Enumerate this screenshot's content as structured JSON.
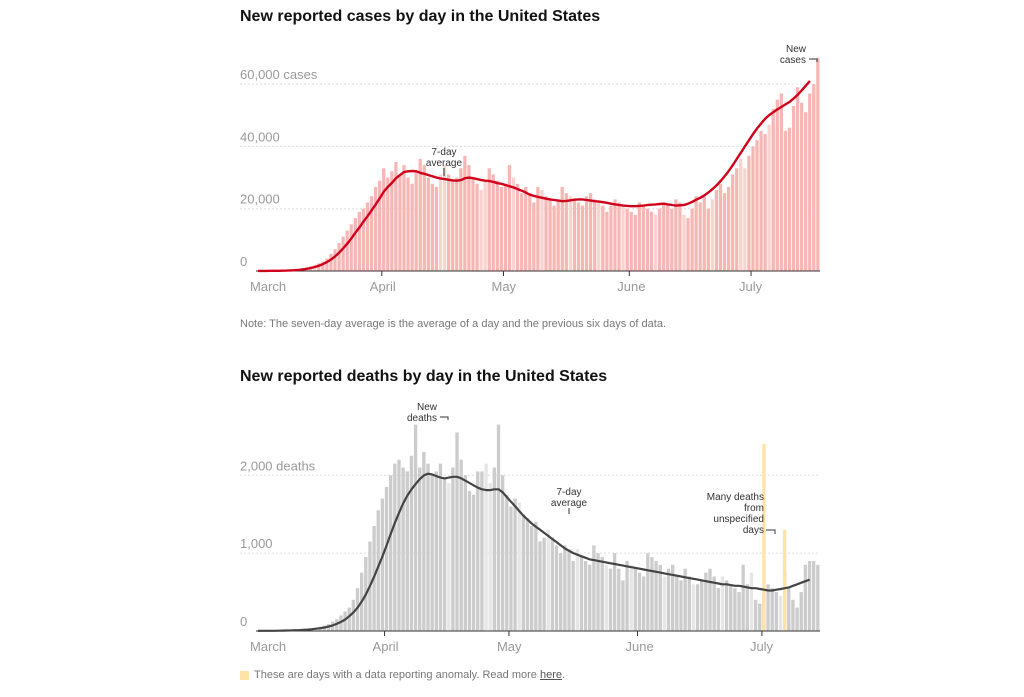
{
  "charts": {
    "cases": {
      "title": "New reported cases by day in the United States",
      "note": "Note: The seven-day average is the average of a day and the previous six days of data.",
      "y_labels": [
        "60,000 cases",
        "40,000",
        "20,000",
        "0"
      ],
      "month_labels": [
        "March",
        "April",
        "May",
        "June",
        "July"
      ],
      "annotation_average": [
        "7-day",
        "average"
      ],
      "annotation_new": [
        "New",
        "cases"
      ]
    },
    "deaths": {
      "title": "New reported deaths by day in the United States",
      "y_labels": [
        "2,000 deaths",
        "1,000",
        "0"
      ],
      "month_labels": [
        "March",
        "April",
        "May",
        "June",
        "July"
      ],
      "annotation_new": [
        "New",
        "deaths"
      ],
      "annotation_average": [
        "7-day",
        "average"
      ],
      "annotation_anomaly": [
        "Many deaths",
        "from",
        "unspecified",
        "days"
      ],
      "legend_text": "These are days with a data reporting anomaly. Read more",
      "legend_link": "here",
      "legend_period": "."
    }
  },
  "colors": {
    "cases_bar": "#f6b7b4",
    "cases_bar_light": "#fad2d0",
    "cases_line": "#d0021b",
    "deaths_bar": "#cccccc",
    "deaths_bar_light": "#e6e6e6",
    "deaths_line": "#444444",
    "anomaly": "#fde3a7"
  },
  "chart_data": [
    {
      "type": "bar",
      "title": "New reported cases by day in the United States",
      "x_range": [
        "2020-03-01",
        "2020-07-12"
      ],
      "ylim": [
        0,
        70000
      ],
      "grid": true,
      "y_ticks": [
        0,
        20000,
        40000,
        60000
      ],
      "series": [
        {
          "name": "New cases",
          "values": [
            30,
            40,
            50,
            60,
            80,
            100,
            150,
            200,
            300,
            450,
            600,
            900,
            1200,
            1500,
            2000,
            2500,
            3000,
            4000,
            5500,
            7000,
            9000,
            11000,
            13000,
            15000,
            17000,
            19000,
            20000,
            22000,
            24000,
            27000,
            29000,
            33000,
            30000,
            32000,
            35000,
            31000,
            34000,
            30000,
            28000,
            32000,
            36000,
            34000,
            30000,
            28000,
            27000,
            31000,
            34000,
            31000,
            29000,
            30000,
            33000,
            37000,
            34000,
            30000,
            28000,
            26000,
            29000,
            33000,
            31000,
            29000,
            27000,
            28000,
            34000,
            30000,
            28000,
            25000,
            27000,
            25000,
            22000,
            27000,
            26000,
            24000,
            23000,
            21000,
            23000,
            27000,
            25000,
            24000,
            23000,
            22000,
            21000,
            24000,
            25000,
            23000,
            22000,
            21000,
            19000,
            21000,
            23000,
            22000,
            21000,
            20000,
            19000,
            18000,
            22000,
            21000,
            20000,
            19000,
            18000,
            20000,
            22000,
            21000,
            20000,
            23000,
            22000,
            18000,
            17000,
            20000,
            24000,
            22000,
            24000,
            20000,
            23000,
            26000,
            28000,
            25000,
            27000,
            31000,
            33000,
            36000,
            33000,
            37000,
            40000,
            42000,
            45000,
            44000,
            47000,
            52000,
            55000,
            57000,
            45000,
            46000,
            53000,
            59000,
            54000,
            51000,
            57000,
            60000,
            68500
          ],
          "light_days": [
            12,
            14,
            45,
            46,
            55,
            56,
            63,
            70,
            77,
            84,
            90,
            98,
            105,
            112,
            119,
            120,
            126
          ]
        },
        {
          "name": "7-day average",
          "values": [
            30,
            35,
            40,
            50,
            60,
            80,
            100,
            130,
            180,
            250,
            350,
            500,
            700,
            950,
            1300,
            1700,
            2200,
            2900,
            3700,
            4700,
            5900,
            7300,
            8800,
            10500,
            12300,
            14000,
            15900,
            17600,
            19500,
            21400,
            23400,
            25500,
            27000,
            28300,
            29800,
            30800,
            31800,
            32000,
            32100,
            32000,
            31500,
            31200,
            30800,
            30400,
            30000,
            29700,
            29500,
            29300,
            29100,
            29000,
            29200,
            29800,
            30000,
            29800,
            29500,
            29200,
            29000,
            28900,
            28600,
            28200,
            28000,
            27600,
            27200,
            26800,
            26300,
            25800,
            25200,
            24500,
            24100,
            23800,
            23500,
            23200,
            23000,
            22800,
            22600,
            22400,
            22500,
            22700,
            22900,
            23000,
            23000,
            22800,
            22600,
            22400,
            22300,
            22100,
            21900,
            21600,
            21400,
            21200,
            21000,
            20900,
            20800,
            20800,
            20900,
            21000,
            21200,
            21300,
            21400,
            21500,
            21600,
            21400,
            21200,
            21000,
            21100,
            21200,
            21600,
            22200,
            22900,
            23500,
            24300,
            25200,
            26300,
            27500,
            28900,
            30400,
            32100,
            34000,
            36000,
            38000,
            40000,
            42000,
            44000,
            45800,
            47400,
            48900,
            50100,
            51000,
            51900,
            52700,
            53500,
            54300,
            55400,
            56600,
            58000,
            59500,
            61000
          ]
        }
      ]
    },
    {
      "type": "bar",
      "title": "New reported deaths by day in the United States",
      "x_range": [
        "2020-03-01",
        "2020-07-12"
      ],
      "ylim": [
        0,
        2800
      ],
      "grid": true,
      "y_ticks": [
        0,
        1000,
        2000
      ],
      "series": [
        {
          "name": "New deaths",
          "values": [
            2,
            3,
            3,
            4,
            5,
            6,
            8,
            10,
            12,
            15,
            18,
            22,
            28,
            35,
            45,
            55,
            70,
            90,
            120,
            150,
            200,
            250,
            300,
            400,
            550,
            750,
            950,
            1150,
            1350,
            1550,
            1700,
            1850,
            2000,
            2150,
            2200,
            2100,
            2050,
            2250,
            2650,
            2100,
            2300,
            2150,
            2000,
            2050,
            2150,
            1950,
            1900,
            2100,
            2550,
            2200,
            2000,
            1800,
            1750,
            2050,
            2050,
            2150,
            1900,
            2100,
            2650,
            2000,
            1750,
            1600,
            1700,
            1650,
            1500,
            1450,
            1350,
            1400,
            1150,
            1200,
            1300,
            1200,
            1100,
            1000,
            1100,
            1050,
            900,
            1050,
            950,
            900,
            850,
            1100,
            1000,
            950,
            850,
            800,
            1000,
            800,
            650,
            900,
            850,
            800,
            750,
            700,
            1000,
            950,
            900,
            850,
            700,
            800,
            850,
            700,
            650,
            800,
            700,
            600,
            600,
            650,
            750,
            800,
            700,
            550,
            700,
            650,
            600,
            550,
            500,
            850,
            600,
            750,
            400,
            350,
            450,
            600,
            550,
            500,
            450,
            750,
            550,
            400,
            300,
            500,
            850,
            900,
            900,
            850
          ],
          "light_days": [
            12,
            14,
            46,
            55,
            56,
            63,
            70,
            77,
            84,
            90,
            98,
            105,
            112,
            119,
            126
          ],
          "anomaly_days": [
            122,
            127
          ],
          "anomaly_values": [
            2400,
            1300
          ]
        },
        {
          "name": "7-day average",
          "values": [
            1,
            2,
            2,
            3,
            3,
            4,
            5,
            6,
            8,
            10,
            12,
            15,
            18,
            23,
            29,
            36,
            45,
            57,
            72,
            92,
            117,
            148,
            190,
            240,
            300,
            380,
            470,
            580,
            700,
            830,
            960,
            1100,
            1250,
            1390,
            1520,
            1640,
            1740,
            1820,
            1890,
            1950,
            2000,
            2020,
            2010,
            1990,
            1970,
            1960,
            1970,
            1980,
            1980,
            1960,
            1930,
            1900,
            1870,
            1840,
            1820,
            1810,
            1810,
            1820,
            1820,
            1780,
            1720,
            1660,
            1600,
            1540,
            1480,
            1430,
            1380,
            1340,
            1300,
            1260,
            1220,
            1180,
            1140,
            1100,
            1060,
            1030,
            1000,
            980,
            960,
            940,
            920,
            910,
            900,
            890,
            880,
            870,
            860,
            850,
            840,
            830,
            820,
            810,
            800,
            790,
            780,
            770,
            760,
            750,
            740,
            730,
            720,
            710,
            700,
            690,
            680,
            670,
            660,
            650,
            640,
            630,
            620,
            610,
            600,
            600,
            590,
            580,
            580,
            570,
            560,
            550,
            550,
            540,
            530,
            520,
            520,
            530,
            540,
            550,
            560,
            580,
            600,
            620,
            640,
            660
          ]
        }
      ]
    }
  ]
}
